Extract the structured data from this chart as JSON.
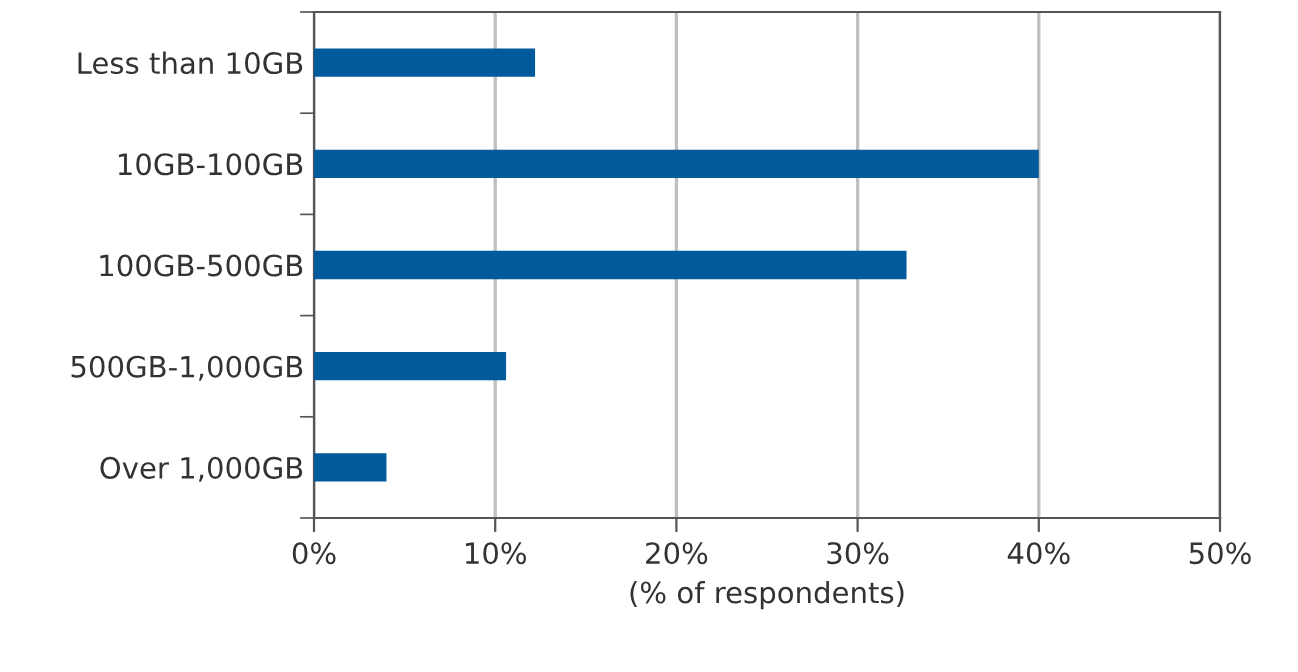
{
  "chart_data": {
    "type": "bar",
    "orientation": "horizontal",
    "xlabel": "(% of respondents)",
    "categories": [
      "Less than 10GB",
      "10GB-100GB",
      "100GB-500GB",
      "500GB-1,000GB",
      "Over 1,000GB"
    ],
    "values": [
      12.2,
      40,
      32.7,
      10.6,
      4.0
    ],
    "color": "#005a9c",
    "xlim": [
      0,
      50
    ],
    "xticks": [
      {
        "value": 0,
        "label": "0%"
      },
      {
        "value": 10,
        "label": "10%"
      },
      {
        "value": 20,
        "label": "20%"
      },
      {
        "value": 30,
        "label": "30%"
      },
      {
        "value": 40,
        "label": "40%"
      },
      {
        "value": 50,
        "label": "50%"
      }
    ],
    "grid": "x",
    "legend": false
  }
}
